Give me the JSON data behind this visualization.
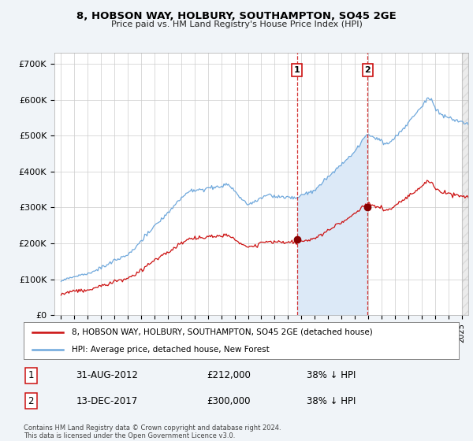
{
  "title": "8, HOBSON WAY, HOLBURY, SOUTHAMPTON, SO45 2GE",
  "subtitle": "Price paid vs. HM Land Registry's House Price Index (HPI)",
  "background_color": "#f0f4f8",
  "plot_bg_color": "#ffffff",
  "grid_color": "#cccccc",
  "hpi_color": "#6fa8dc",
  "hpi_fill_color": "#dce9f7",
  "price_color": "#cc1111",
  "purchase1_date_num": 2012.67,
  "purchase1_price": 212000,
  "purchase2_date_num": 2017.96,
  "purchase2_price": 300000,
  "yticks": [
    0,
    100000,
    200000,
    300000,
    400000,
    500000,
    600000,
    700000
  ],
  "ytick_labels": [
    "£0",
    "£100K",
    "£200K",
    "£300K",
    "£400K",
    "£500K",
    "£600K",
    "£700K"
  ],
  "ylim": [
    0,
    730000
  ],
  "xlim_start": 1994.5,
  "xlim_end": 2025.5,
  "footnote": "Contains HM Land Registry data © Crown copyright and database right 2024.\nThis data is licensed under the Open Government Licence v3.0.",
  "legend_line1": "8, HOBSON WAY, HOLBURY, SOUTHAMPTON, SO45 2GE (detached house)",
  "legend_line2": "HPI: Average price, detached house, New Forest"
}
